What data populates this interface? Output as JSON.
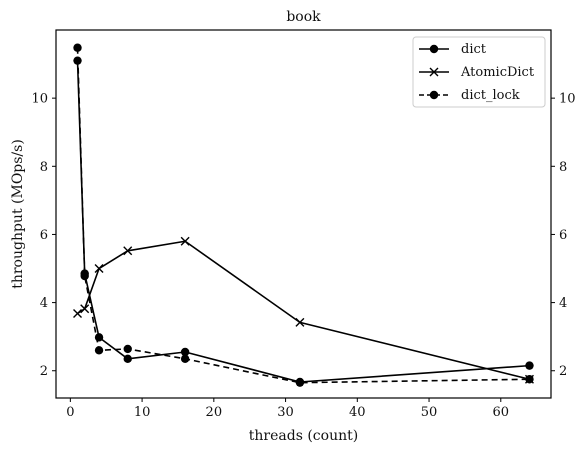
{
  "chart_data": {
    "type": "line",
    "title": "book",
    "xlabel": "threads (count)",
    "ylabel": "throughput (MOps/s)",
    "xlim": [
      -2,
      67
    ],
    "ylim": [
      1.2,
      12
    ],
    "xticks": [
      0,
      10,
      20,
      30,
      40,
      50,
      60
    ],
    "xtick_labels": [
      "0",
      "10",
      "20",
      "30",
      "40",
      "50",
      "60"
    ],
    "yticks": [
      2,
      4,
      6,
      8,
      10
    ],
    "ytick_labels": [
      "2",
      "4",
      "6",
      "8",
      "10"
    ],
    "right_axis_ticks": true,
    "grid": false,
    "legend": {
      "placement": "top-right",
      "entries": [
        "dict",
        "AtomicDict",
        "dict_lock"
      ]
    },
    "series": [
      {
        "name": "dict",
        "style": "solid",
        "marker": "circle",
        "x": [
          1,
          2,
          4,
          8,
          16,
          32,
          64
        ],
        "y": [
          11.1,
          4.85,
          2.98,
          2.35,
          2.55,
          1.67,
          2.15
        ]
      },
      {
        "name": "AtomicDict",
        "style": "solid",
        "marker": "x",
        "x": [
          1,
          2,
          4,
          8,
          16,
          32,
          64
        ],
        "y": [
          3.68,
          3.82,
          5.0,
          5.52,
          5.8,
          3.42,
          1.75
        ]
      },
      {
        "name": "dict_lock",
        "style": "dashed",
        "marker": "circle",
        "x": [
          1,
          2,
          4,
          8,
          16,
          32,
          64
        ],
        "y": [
          11.48,
          4.78,
          2.6,
          2.64,
          2.35,
          1.65,
          1.75
        ]
      }
    ]
  }
}
